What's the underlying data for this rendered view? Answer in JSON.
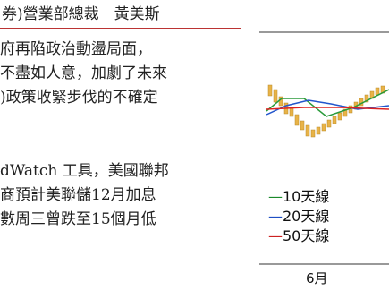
{
  "article": {
    "byline": "券)營業部總裁　黃美斯",
    "lines": [
      "府再陷政治動盪局面，",
      "不盡如人意，加劇了未來",
      ")政策收緊步伐的不確定",
      "dWatch 工具，美國聯邦",
      "商預計美聯儲12月加息",
      "數周三曾跌至15個月低"
    ]
  },
  "chart": {
    "legend": [
      "—10天線",
      "—20天線",
      "—50天線"
    ],
    "x_label": "6月"
  }
}
